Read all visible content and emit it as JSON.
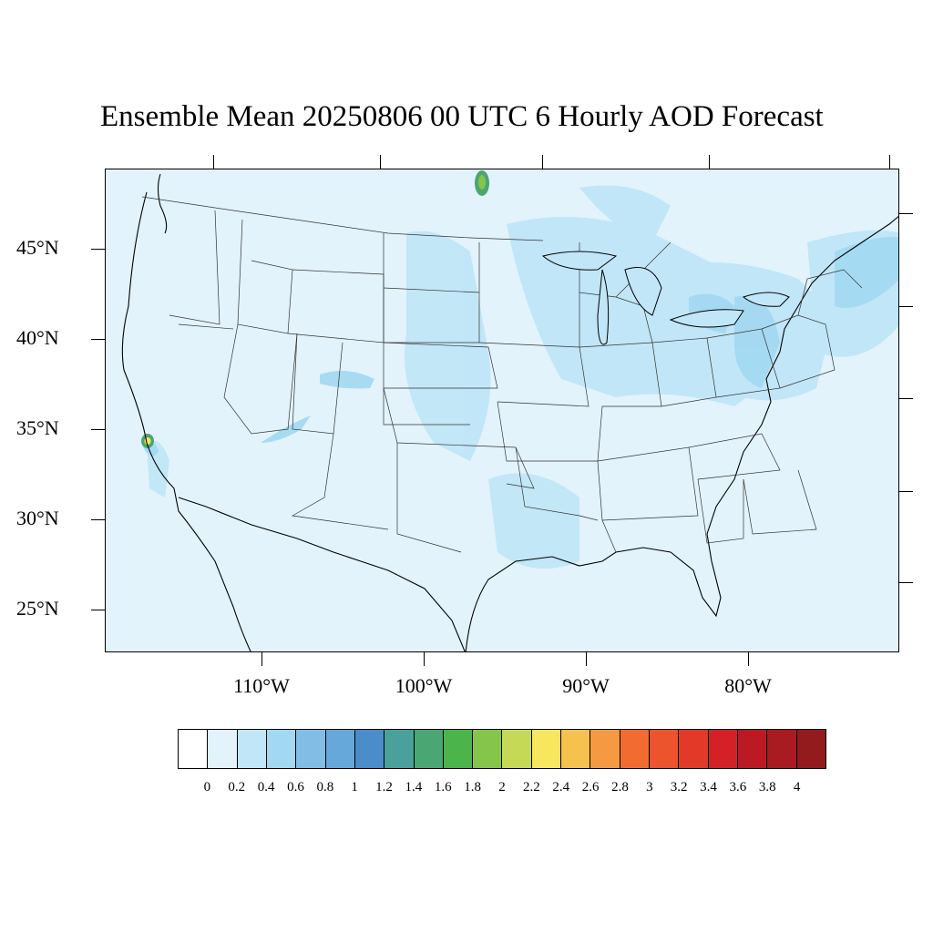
{
  "title": "Ensemble Mean 20250806 00 UTC 6 Hourly AOD Forecast",
  "map": {
    "region": "Contiguous United States",
    "lat_labels": [
      "45°N",
      "40°N",
      "35°N",
      "30°N",
      "25°N"
    ],
    "lon_labels": [
      "110°W",
      "100°W",
      "90°W",
      "80°W"
    ],
    "background_color": "#e2f3fb"
  },
  "colorbar": {
    "labels": [
      "0",
      "0.2",
      "0.4",
      "0.6",
      "0.8",
      "1",
      "1.2",
      "1.4",
      "1.6",
      "1.8",
      "2",
      "2.2",
      "2.4",
      "2.6",
      "2.8",
      "3",
      "3.2",
      "3.4",
      "3.6",
      "3.8",
      "4"
    ],
    "colors": [
      "#ffffff",
      "#e2f3fb",
      "#c0e6f7",
      "#a2d8f2",
      "#82bde6",
      "#66a8da",
      "#4a8dca",
      "#4aa19c",
      "#4aa673",
      "#4bb54b",
      "#85c54c",
      "#c6d957",
      "#f8e65e",
      "#f7c14e",
      "#f59a42",
      "#f26c32",
      "#ec542d",
      "#e23a29",
      "#d42128",
      "#bb1a24",
      "#a81b20",
      "#931b1d"
    ]
  }
}
